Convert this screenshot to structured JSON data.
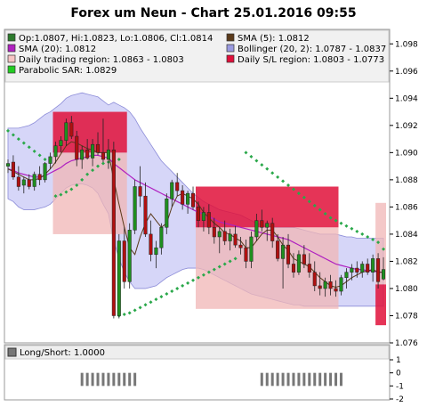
{
  "title": "Forex um Neun - Chart 25.01.2016 09:55",
  "colors": {
    "candle_up": "#1f8f1f",
    "candle_down": "#b01010",
    "bollinger_band": "#c8c8f5",
    "bollinger_edge": "#8c8cd8",
    "sma5": "#5a3a1a",
    "sma20": "#b020c0",
    "sar": "#2aa84a",
    "daily_region": "#f0b6b6",
    "sl_region": "#e0103a",
    "bar_gray": "#777777"
  },
  "legend": [
    {
      "label": "Op:1.0807, Hi:1.0823, Lo:1.0806, Cl:1.0814",
      "color": "#2c7a2c",
      "icon": "green-square-icon"
    },
    {
      "label": "SMA (5): 1.0812",
      "color": "#5a3a1a",
      "icon": "brown-square-icon"
    },
    {
      "label": "SMA (20): 1.0812",
      "color": "#b020c0",
      "icon": "purple-square-icon"
    },
    {
      "label": "Bollinger (20, 2): 1.0787 - 1.0837",
      "color": "#9a9ae0",
      "icon": "lavender-square-icon"
    },
    {
      "label": "Daily trading region: 1.0863 - 1.0803",
      "color": "#f7c4c4",
      "icon": "pink-square-icon"
    },
    {
      "label": "Daily S/L region: 1.0803 - 1.0773",
      "color": "#e0103a",
      "icon": "red-square-icon"
    },
    {
      "label": "Parabolic SAR: 1.0829",
      "color": "#22cc22",
      "icon": "green-square-icon"
    }
  ],
  "subpanel": {
    "label": "Long/Short: 1.0000",
    "ticks": [
      "1",
      "0",
      "-1",
      "-2"
    ]
  },
  "chart_data": {
    "type": "candlestick",
    "ylim": [
      1.076,
      1.099
    ],
    "yticks": [
      "1.098",
      "1.096",
      "1.094",
      "1.092",
      "1.090",
      "1.088",
      "1.086",
      "1.084",
      "1.082",
      "1.080",
      "1.078",
      "1.076"
    ],
    "ohlc": [
      [
        1.089,
        1.0895,
        1.0885,
        1.0892
      ],
      [
        1.0893,
        1.0898,
        1.088,
        1.0882
      ],
      [
        1.0882,
        1.089,
        1.0872,
        1.0875
      ],
      [
        1.0876,
        1.0882,
        1.087,
        1.088
      ],
      [
        1.088,
        1.0884,
        1.0873,
        1.0875
      ],
      [
        1.0875,
        1.0886,
        1.0872,
        1.0884
      ],
      [
        1.0884,
        1.089,
        1.0876,
        1.088
      ],
      [
        1.088,
        1.0893,
        1.0878,
        1.0892
      ],
      [
        1.0892,
        1.09,
        1.0888,
        1.0897
      ],
      [
        1.0897,
        1.0908,
        1.0892,
        1.0905
      ],
      [
        1.0905,
        1.0912,
        1.09,
        1.0909
      ],
      [
        1.0909,
        1.0925,
        1.0905,
        1.0922
      ],
      [
        1.0922,
        1.0927,
        1.091,
        1.0912
      ],
      [
        1.0912,
        1.0916,
        1.089,
        1.0895
      ],
      [
        1.0895,
        1.0905,
        1.0888,
        1.0902
      ],
      [
        1.0902,
        1.091,
        1.0895,
        1.0896
      ],
      [
        1.0896,
        1.091,
        1.089,
        1.0906
      ],
      [
        1.0906,
        1.0915,
        1.0898,
        1.09
      ],
      [
        1.09,
        1.0925,
        1.0893,
        1.0895
      ],
      [
        1.0895,
        1.091,
        1.0888,
        1.0902
      ],
      [
        1.0902,
        1.0908,
        1.0778,
        1.078
      ],
      [
        1.078,
        1.084,
        1.0778,
        1.0835
      ],
      [
        1.0835,
        1.0845,
        1.08,
        1.0805
      ],
      [
        1.0805,
        1.0848,
        1.08,
        1.0843
      ],
      [
        1.0843,
        1.088,
        1.084,
        1.0875
      ],
      [
        1.0875,
        1.089,
        1.086,
        1.0868
      ],
      [
        1.0868,
        1.0878,
        1.0838,
        1.084
      ],
      [
        1.084,
        1.085,
        1.082,
        1.0825
      ],
      [
        1.0825,
        1.0835,
        1.0815,
        1.083
      ],
      [
        1.083,
        1.0848,
        1.0825,
        1.0845
      ],
      [
        1.0845,
        1.087,
        1.084,
        1.0866
      ],
      [
        1.0866,
        1.088,
        1.086,
        1.0878
      ],
      [
        1.0878,
        1.0885,
        1.0868,
        1.0872
      ],
      [
        1.0872,
        1.0876,
        1.0858,
        1.0862
      ],
      [
        1.0862,
        1.0872,
        1.0855,
        1.087
      ],
      [
        1.087,
        1.0875,
        1.0858,
        1.086
      ],
      [
        1.086,
        1.0864,
        1.0845,
        1.085
      ],
      [
        1.085,
        1.086,
        1.0842,
        1.0856
      ],
      [
        1.0856,
        1.0862,
        1.084,
        1.0845
      ],
      [
        1.0845,
        1.0852,
        1.0833,
        1.0838
      ],
      [
        1.0838,
        1.0845,
        1.0826,
        1.0842
      ],
      [
        1.0842,
        1.085,
        1.0832,
        1.0835
      ],
      [
        1.0835,
        1.0844,
        1.0828,
        1.084
      ],
      [
        1.084,
        1.0846,
        1.083,
        1.0832
      ],
      [
        1.0832,
        1.0838,
        1.0825,
        1.083
      ],
      [
        1.083,
        1.0836,
        1.0815,
        1.082
      ],
      [
        1.082,
        1.0842,
        1.0815,
        1.0838
      ],
      [
        1.0838,
        1.0855,
        1.0835,
        1.085
      ],
      [
        1.085,
        1.0858,
        1.0842,
        1.0845
      ],
      [
        1.0845,
        1.085,
        1.0835,
        1.0848
      ],
      [
        1.0848,
        1.0852,
        1.083,
        1.0835
      ],
      [
        1.0835,
        1.084,
        1.082,
        1.0822
      ],
      [
        1.0822,
        1.0838,
        1.08,
        1.0832
      ],
      [
        1.0832,
        1.084,
        1.0815,
        1.0818
      ],
      [
        1.0818,
        1.0826,
        1.0808,
        1.0812
      ],
      [
        1.0812,
        1.0828,
        1.081,
        1.0825
      ],
      [
        1.0825,
        1.0832,
        1.0815,
        1.0818
      ],
      [
        1.0818,
        1.0826,
        1.0808,
        1.0812
      ],
      [
        1.0812,
        1.082,
        1.0798,
        1.0802
      ],
      [
        1.0802,
        1.0812,
        1.0795,
        1.08
      ],
      [
        1.08,
        1.0808,
        1.0794,
        1.0805
      ],
      [
        1.0805,
        1.081,
        1.0795,
        1.08
      ],
      [
        1.08,
        1.0806,
        1.0794,
        1.0798
      ],
      [
        1.0798,
        1.081,
        1.0795,
        1.0808
      ],
      [
        1.0808,
        1.0815,
        1.08,
        1.0812
      ],
      [
        1.0812,
        1.0818,
        1.0806,
        1.0815
      ],
      [
        1.0815,
        1.082,
        1.0808,
        1.0812
      ],
      [
        1.0812,
        1.082,
        1.0808,
        1.0818
      ],
      [
        1.0818,
        1.0822,
        1.081,
        1.0812
      ],
      [
        1.0812,
        1.0825,
        1.0805,
        1.0822
      ],
      [
        1.0822,
        1.0826,
        1.08,
        1.0805
      ],
      [
        1.0807,
        1.0823,
        1.0806,
        1.0814
      ]
    ],
    "sma5": [
      1.0888,
      1.0886,
      1.0884,
      1.0882,
      1.088,
      1.088,
      1.0881,
      1.0884,
      1.0888,
      1.0893,
      1.0899,
      1.0905,
      1.0908,
      1.0907,
      1.0905,
      1.0903,
      1.0902,
      1.09,
      1.09,
      1.09,
      1.088,
      1.0862,
      1.0845,
      1.083,
      1.0825,
      1.0838,
      1.0848,
      1.0855,
      1.085,
      1.0845,
      1.0848,
      1.086,
      1.0868,
      1.087,
      1.0868,
      1.0866,
      1.0862,
      1.0856,
      1.0852,
      1.0848,
      1.0845,
      1.0841,
      1.084,
      1.0837,
      1.0835,
      1.083,
      1.083,
      1.0835,
      1.084,
      1.0843,
      1.0843,
      1.0838,
      1.0832,
      1.0828,
      1.0822,
      1.082,
      1.0818,
      1.0816,
      1.0812,
      1.0808,
      1.0805,
      1.0802,
      1.0801,
      1.0802,
      1.0805,
      1.0808,
      1.081,
      1.0812,
      1.0813,
      1.0814,
      1.0812,
      1.0812
    ],
    "sma20": [
      1.0888,
      1.0887,
      1.0885,
      1.0884,
      1.0883,
      1.0882,
      1.0882,
      1.0883,
      1.0885,
      1.0887,
      1.0889,
      1.0892,
      1.0894,
      1.0895,
      1.0896,
      1.0897,
      1.0898,
      1.0898,
      1.0897,
      1.0896,
      1.0892,
      1.0889,
      1.0886,
      1.0883,
      1.088,
      1.0878,
      1.0876,
      1.0874,
      1.0872,
      1.087,
      1.0868,
      1.0866,
      1.0864,
      1.0862,
      1.086,
      1.0858,
      1.0856,
      1.0855,
      1.0853,
      1.0851,
      1.0849,
      1.0848,
      1.0847,
      1.0846,
      1.0845,
      1.0844,
      1.0843,
      1.0842,
      1.0841,
      1.084,
      1.0839,
      1.0838,
      1.0837,
      1.0836,
      1.0834,
      1.0832,
      1.083,
      1.0828,
      1.0826,
      1.0824,
      1.0822,
      1.082,
      1.0818,
      1.0817,
      1.0816,
      1.0815,
      1.0814,
      1.0814,
      1.0813,
      1.0813,
      1.0812,
      1.0812
    ],
    "bollinger_upper": [
      1.0918,
      1.0918,
      1.0918,
      1.0919,
      1.092,
      1.0922,
      1.0925,
      1.0928,
      1.093,
      1.0933,
      1.0936,
      1.094,
      1.0942,
      1.0943,
      1.0944,
      1.0943,
      1.0942,
      1.0941,
      1.0938,
      1.0935,
      1.0937,
      1.0935,
      1.0933,
      1.093,
      1.0925,
      1.0918,
      1.0912,
      1.0906,
      1.09,
      1.0894,
      1.089,
      1.0886,
      1.0882,
      1.0878,
      1.0874,
      1.087,
      1.0867,
      1.0864,
      1.0862,
      1.086,
      1.0858,
      1.0857,
      1.0856,
      1.0855,
      1.0854,
      1.0852,
      1.085,
      1.0848,
      1.0847,
      1.0846,
      1.0845,
      1.0845,
      1.0845,
      1.0845,
      1.0845,
      1.0844,
      1.0843,
      1.0842,
      1.0841,
      1.084,
      1.084,
      1.084,
      1.084,
      1.0839,
      1.0838,
      1.0838,
      1.0837,
      1.0837,
      1.0837,
      1.0837,
      1.0837,
      1.0837
    ],
    "bollinger_lower": [
      1.0866,
      1.0864,
      1.086,
      1.0858,
      1.0858,
      1.0858,
      1.0859,
      1.086,
      1.0862,
      1.0866,
      1.087,
      1.0874,
      1.0876,
      1.0877,
      1.0877,
      1.0876,
      1.0874,
      1.087,
      1.0862,
      1.0855,
      1.0835,
      1.0822,
      1.0812,
      1.0805,
      1.08,
      1.08,
      1.08,
      1.0801,
      1.0802,
      1.0805,
      1.0808,
      1.081,
      1.0812,
      1.0814,
      1.0815,
      1.0815,
      1.0815,
      1.0814,
      1.0812,
      1.081,
      1.0808,
      1.0806,
      1.0804,
      1.0802,
      1.08,
      1.0798,
      1.0796,
      1.0795,
      1.0794,
      1.0793,
      1.0792,
      1.0791,
      1.079,
      1.0789,
      1.0788,
      1.0788,
      1.0787,
      1.0787,
      1.0787,
      1.0787,
      1.0787,
      1.0787,
      1.0787,
      1.0787,
      1.0787,
      1.0787,
      1.0787,
      1.0787,
      1.0787,
      1.0787,
      1.0787,
      1.0787
    ],
    "daily_trading_regions": [
      {
        "from": 9,
        "to": 22,
        "high": 1.09,
        "low": 1.084
      },
      {
        "from": 36,
        "to": 62,
        "high": 1.0845,
        "low": 1.0785
      },
      {
        "from": 70,
        "to": 71,
        "high": 1.0863,
        "low": 1.0803
      }
    ],
    "daily_sl_regions": [
      {
        "from": 9,
        "to": 22,
        "high": 1.093,
        "low": 1.09
      },
      {
        "from": 36,
        "to": 62,
        "high": 1.0875,
        "low": 1.0845
      },
      {
        "from": 70,
        "to": 71,
        "high": 1.0803,
        "low": 1.0773
      }
    ],
    "sar": [
      [
        0,
        1.0916
      ],
      [
        1,
        1.0913
      ],
      [
        2,
        1.091
      ],
      [
        3,
        1.0907
      ],
      [
        4,
        1.0904
      ],
      [
        5,
        1.0901
      ],
      [
        6,
        1.0898
      ],
      [
        7,
        1.0895
      ],
      [
        9,
        1.0868
      ],
      [
        10,
        1.0869
      ],
      [
        11,
        1.0871
      ],
      [
        12,
        1.0873
      ],
      [
        13,
        1.0876
      ],
      [
        14,
        1.088
      ],
      [
        15,
        1.0884
      ],
      [
        16,
        1.0887
      ],
      [
        17,
        1.089
      ],
      [
        18,
        1.0892
      ],
      [
        19,
        1.0893
      ],
      [
        20,
        1.0894
      ],
      [
        21,
        1.0895
      ],
      [
        21,
        1.078
      ],
      [
        22,
        1.0781
      ],
      [
        23,
        1.0782
      ],
      [
        24,
        1.0784
      ],
      [
        25,
        1.0786
      ],
      [
        26,
        1.0788
      ],
      [
        27,
        1.079
      ],
      [
        28,
        1.0792
      ],
      [
        29,
        1.0794
      ],
      [
        30,
        1.0796
      ],
      [
        31,
        1.0798
      ],
      [
        32,
        1.08
      ],
      [
        33,
        1.0802
      ],
      [
        34,
        1.0804
      ],
      [
        35,
        1.0806
      ],
      [
        36,
        1.0808
      ],
      [
        37,
        1.081
      ],
      [
        38,
        1.0812
      ],
      [
        39,
        1.0814
      ],
      [
        40,
        1.0816
      ],
      [
        41,
        1.0818
      ],
      [
        42,
        1.082
      ],
      [
        43,
        1.0822
      ],
      [
        45,
        1.09
      ],
      [
        46,
        1.0897
      ],
      [
        47,
        1.0894
      ],
      [
        48,
        1.0891
      ],
      [
        49,
        1.0888
      ],
      [
        50,
        1.0885
      ],
      [
        51,
        1.0882
      ],
      [
        52,
        1.0879
      ],
      [
        53,
        1.0876
      ],
      [
        54,
        1.0873
      ],
      [
        55,
        1.087
      ],
      [
        56,
        1.0867
      ],
      [
        57,
        1.0864
      ],
      [
        58,
        1.0861
      ],
      [
        59,
        1.0858
      ],
      [
        60,
        1.0855
      ],
      [
        61,
        1.0852
      ],
      [
        62,
        1.085
      ],
      [
        63,
        1.0848
      ],
      [
        64,
        1.0846
      ],
      [
        65,
        1.0844
      ],
      [
        66,
        1.0842
      ],
      [
        67,
        1.084
      ],
      [
        68,
        1.0838
      ],
      [
        69,
        1.0836
      ],
      [
        70,
        1.0834
      ],
      [
        71,
        1.0829
      ]
    ],
    "long_short": {
      "ylim": [
        -2,
        1
      ],
      "bars": [
        {
          "from": 14,
          "to": 24,
          "value": -1
        },
        {
          "from": 48,
          "to": 63,
          "value": -1
        }
      ]
    }
  }
}
